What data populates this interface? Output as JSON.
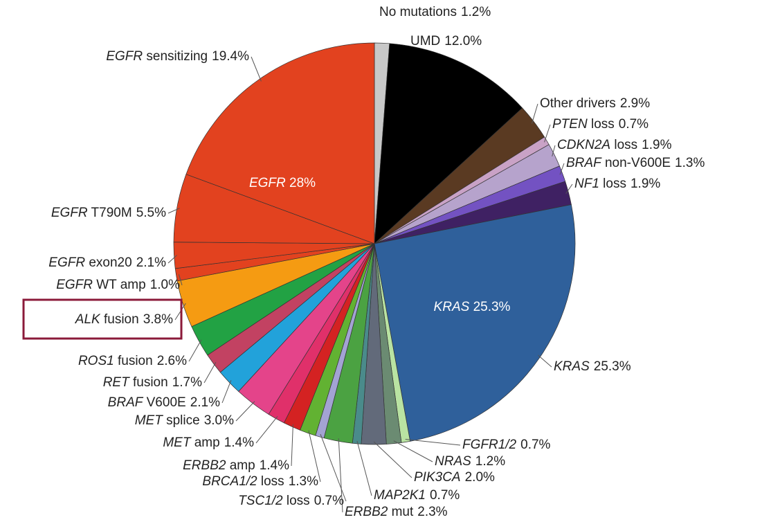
{
  "chart_data": {
    "type": "pie",
    "categories": [
      "No mutations",
      "UMD",
      "Other drivers",
      "PTEN loss",
      "CDKN2A loss",
      "BRAF non-V600E",
      "NF1 loss",
      "KRAS",
      "FGFR1/2",
      "NRAS",
      "PIK3CA",
      "MAP2K1",
      "ERBB2 mut",
      "TSC1/2 loss",
      "BRCA1/2 loss",
      "ERBB2 amp",
      "MET amp",
      "MET splice",
      "BRAF V600E",
      "RET fusion",
      "ROS1 fusion",
      "ALK fusion",
      "EGFR WT amp",
      "EGFR exon20",
      "EGFR T790M",
      "EGFR sensitizing"
    ],
    "values": [
      1.2,
      12.0,
      2.9,
      0.7,
      1.9,
      1.3,
      1.9,
      25.3,
      0.7,
      1.2,
      2.0,
      0.7,
      2.3,
      0.7,
      1.3,
      1.4,
      1.4,
      3.0,
      2.1,
      1.7,
      2.6,
      3.8,
      1.0,
      2.1,
      5.5,
      19.4
    ],
    "value_labels": [
      "1.2%",
      "12.0%",
      "2.9%",
      "0.7%",
      "1.9%",
      "1.3%",
      "1.9%",
      "25.3%",
      "0.7%",
      "1.2%",
      "2.0%",
      "0.7%",
      "2.3%",
      "0.7%",
      "1.3%",
      "1.4%",
      "1.4%",
      "3.0%",
      "2.1%",
      "1.7%",
      "2.6%",
      "3.8%",
      "1.0%",
      "2.1%",
      "5.5%",
      "19.4%"
    ],
    "italic_first_word": [
      false,
      false,
      false,
      true,
      true,
      true,
      true,
      true,
      true,
      true,
      true,
      true,
      true,
      true,
      true,
      true,
      true,
      true,
      true,
      true,
      true,
      true,
      true,
      true,
      true,
      true
    ],
    "colors": [
      "#c8c8c8",
      "#000000",
      "#5a3a22",
      "#c9a2c6",
      "#b6a3cc",
      "#7352c2",
      "#3f2163",
      "#2f609b",
      "#b9e3a2",
      "#6b8b72",
      "#626a7a",
      "#4a8b8b",
      "#4ba242",
      "#a3a3d3",
      "#62b232",
      "#d42222",
      "#e0306a",
      "#e4448a",
      "#22a2da",
      "#c24262",
      "#22a244",
      "#f59b12",
      "#e2421f",
      "#e2421f",
      "#e2421f",
      "#e2421f"
    ],
    "annotations": [
      {
        "text": "EGFR 28%",
        "italic_first_word": true
      },
      {
        "text": "KRAS 25.3%",
        "italic_first_word": true
      }
    ]
  }
}
